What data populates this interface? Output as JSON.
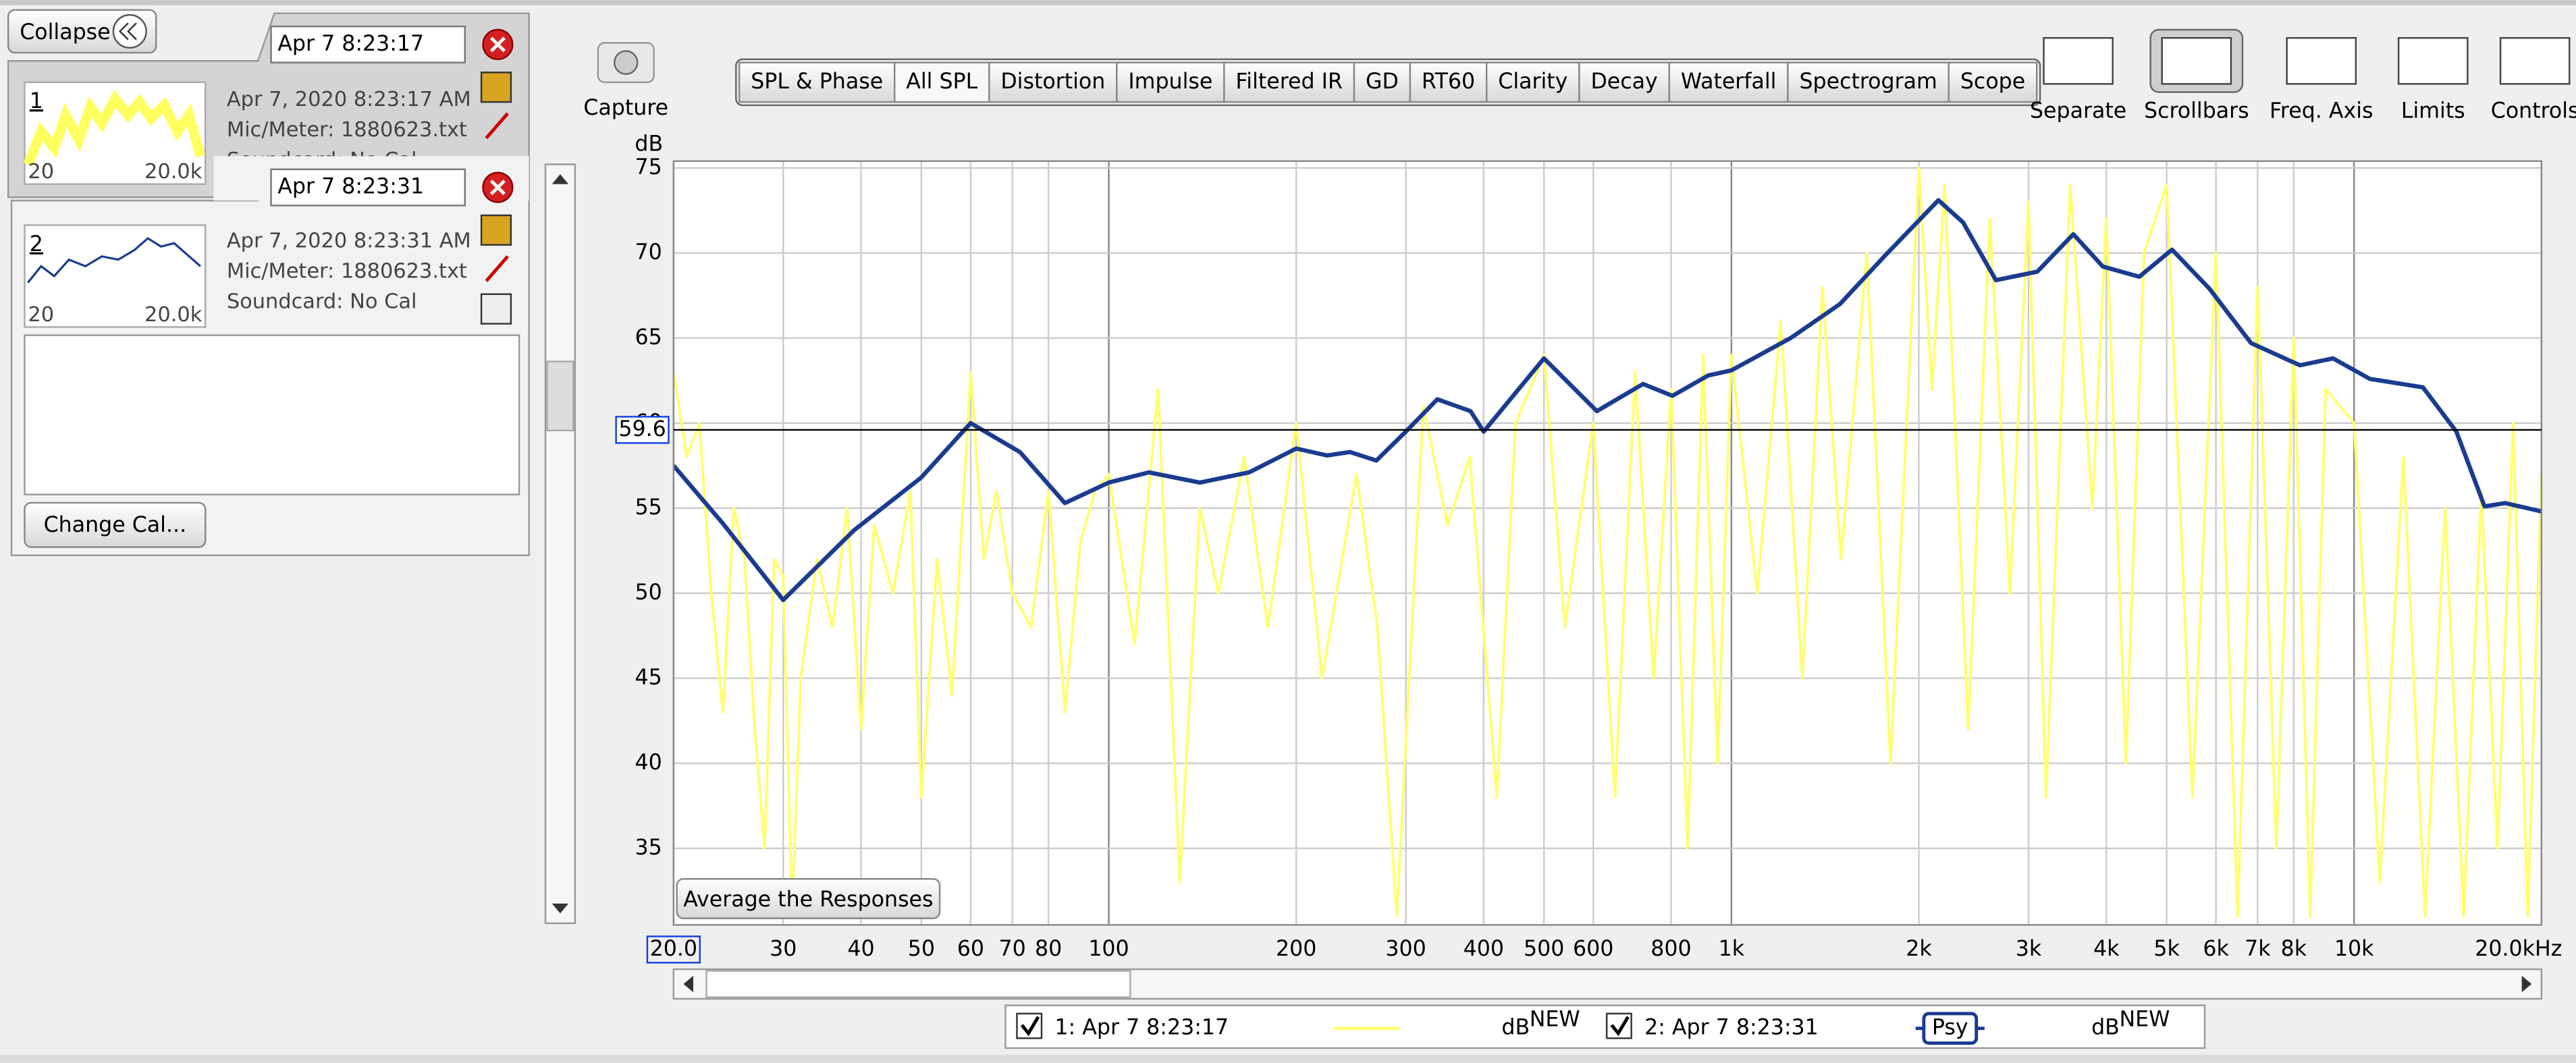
{
  "panel": {
    "collapse": "Collapse",
    "measurements": [
      {
        "number": "1",
        "name": "Apr 7 8:23:17",
        "date": "Apr 7, 2020 8:23:17 AM",
        "meter": "Mic/Meter: 1880623.txt",
        "soundcard": "Soundcard: No Cal",
        "thumb_min": "20",
        "thumb_max": "20.0k"
      },
      {
        "number": "2",
        "name": "Apr 7 8:23:31",
        "date": "Apr 7, 2020 8:23:31 AM",
        "meter": "Mic/Meter: 1880623.txt",
        "soundcard": "Soundcard: No Cal",
        "thumb_min": "20",
        "thumb_max": "20.0k"
      }
    ],
    "change_cal": "Change Cal..."
  },
  "toolbar": {
    "capture": "Capture",
    "tabs": [
      "SPL & Phase",
      "All SPL",
      "Distortion",
      "Impulse",
      "Filtered IR",
      "GD",
      "RT60",
      "Clarity",
      "Decay",
      "Waterfall",
      "Spectrogram",
      "Scope"
    ],
    "active_tab": 1,
    "tools": [
      "Separate",
      "Scrollbars",
      "Freq. Axis",
      "Limits",
      "Controls"
    ]
  },
  "chart_data": {
    "type": "line",
    "y_label": "dB",
    "x_log": true,
    "grid": true,
    "xlim": [
      20,
      20000
    ],
    "ylim": [
      30.5,
      75.4
    ],
    "xticks": [
      {
        "value": 20,
        "label": "20.0"
      },
      30,
      40,
      50,
      60,
      70,
      80,
      100,
      200,
      300,
      400,
      500,
      600,
      800,
      {
        "value": 1000,
        "label": "1k"
      },
      {
        "value": 2000,
        "label": "2k"
      },
      {
        "value": 3000,
        "label": "3k"
      },
      {
        "value": 4000,
        "label": "4k"
      },
      {
        "value": 5000,
        "label": "5k"
      },
      {
        "value": 6000,
        "label": "6k"
      },
      {
        "value": 7000,
        "label": "7k"
      },
      {
        "value": 8000,
        "label": "8k"
      },
      {
        "value": 10000,
        "label": "10k"
      },
      {
        "value": 20000,
        "label": "20.0kHz"
      }
    ],
    "yticks": [
      35,
      40,
      45,
      50,
      55,
      60,
      65,
      70,
      75
    ],
    "cursor_level": 59.6,
    "average_button": "Average the Responses",
    "legend_units": "dB",
    "legend_badge": "NEW",
    "legend_smoothing": "Psy",
    "series": [
      {
        "name": "1: Apr 7 8:23:17",
        "color": "#ffff70",
        "x": [
          20,
          21,
          22,
          23,
          24,
          25,
          26,
          27,
          28,
          29,
          30,
          31,
          32,
          34,
          36,
          38,
          40,
          42,
          45,
          48,
          50,
          53,
          56,
          60,
          63,
          66,
          70,
          75,
          80,
          85,
          90,
          95,
          100,
          110,
          120,
          130,
          140,
          150,
          165,
          180,
          200,
          220,
          250,
          270,
          290,
          320,
          350,
          380,
          420,
          450,
          500,
          540,
          600,
          650,
          700,
          750,
          800,
          850,
          900,
          950,
          1000,
          1100,
          1200,
          1300,
          1400,
          1500,
          1650,
          1800,
          2000,
          2100,
          2200,
          2400,
          2600,
          2800,
          3000,
          3200,
          3500,
          3800,
          4000,
          4300,
          4600,
          5000,
          5500,
          6000,
          6500,
          7000,
          7500,
          8000,
          8500,
          9000,
          10000,
          11000,
          12000,
          13000,
          14000,
          15000,
          16000,
          17000,
          18000,
          19000,
          20000
        ],
        "values": [
          63,
          58,
          60,
          50,
          43,
          55,
          52,
          42,
          35,
          52,
          51,
          31,
          45,
          52,
          48,
          55,
          42,
          54,
          50,
          56,
          38,
          52,
          44,
          63,
          52,
          56,
          50,
          48,
          56,
          43,
          53,
          56,
          57,
          47,
          62,
          33,
          55,
          50,
          58,
          48,
          60,
          45,
          57,
          48,
          31,
          61,
          54,
          58,
          38,
          60,
          64,
          48,
          60,
          38,
          63,
          45,
          62,
          35,
          64,
          40,
          64,
          50,
          66,
          45,
          68,
          52,
          70,
          40,
          75,
          62,
          74,
          42,
          72,
          50,
          73,
          38,
          74,
          55,
          72,
          40,
          70,
          74,
          38,
          70,
          31,
          68,
          35,
          65,
          31,
          62,
          60,
          33,
          58,
          31,
          55,
          31,
          56,
          35,
          60,
          31,
          57
        ]
      },
      {
        "name": "2: Apr 7 8:23:31",
        "color": "#1a3c8f",
        "x": [
          20,
          24,
          30,
          39,
          50,
          60,
          72,
          85,
          100,
          116,
          140,
          168,
          200,
          224,
          244,
          269,
          300,
          337,
          381,
          400,
          500,
          608,
          721,
          804,
          918,
          1000,
          1245,
          1494,
          1770,
          2150,
          2355,
          2660,
          3100,
          3540,
          3950,
          4520,
          5100,
          5860,
          6830,
          8190,
          9250,
          10600,
          12900,
          14600,
          16200,
          17500,
          20000
        ],
        "values": [
          57.5,
          54.1,
          49.6,
          53.7,
          56.8,
          60.0,
          58.3,
          55.3,
          56.5,
          57.1,
          56.5,
          57.1,
          58.5,
          58.1,
          58.3,
          57.8,
          59.5,
          61.4,
          60.7,
          59.5,
          63.8,
          60.7,
          62.3,
          61.6,
          62.8,
          63.1,
          65.0,
          67.0,
          69.9,
          73.1,
          71.8,
          68.4,
          68.9,
          71.1,
          69.2,
          68.6,
          70.2,
          67.9,
          64.7,
          63.4,
          63.8,
          62.6,
          62.1,
          59.5,
          55.1,
          55.3,
          54.8
        ]
      }
    ]
  }
}
